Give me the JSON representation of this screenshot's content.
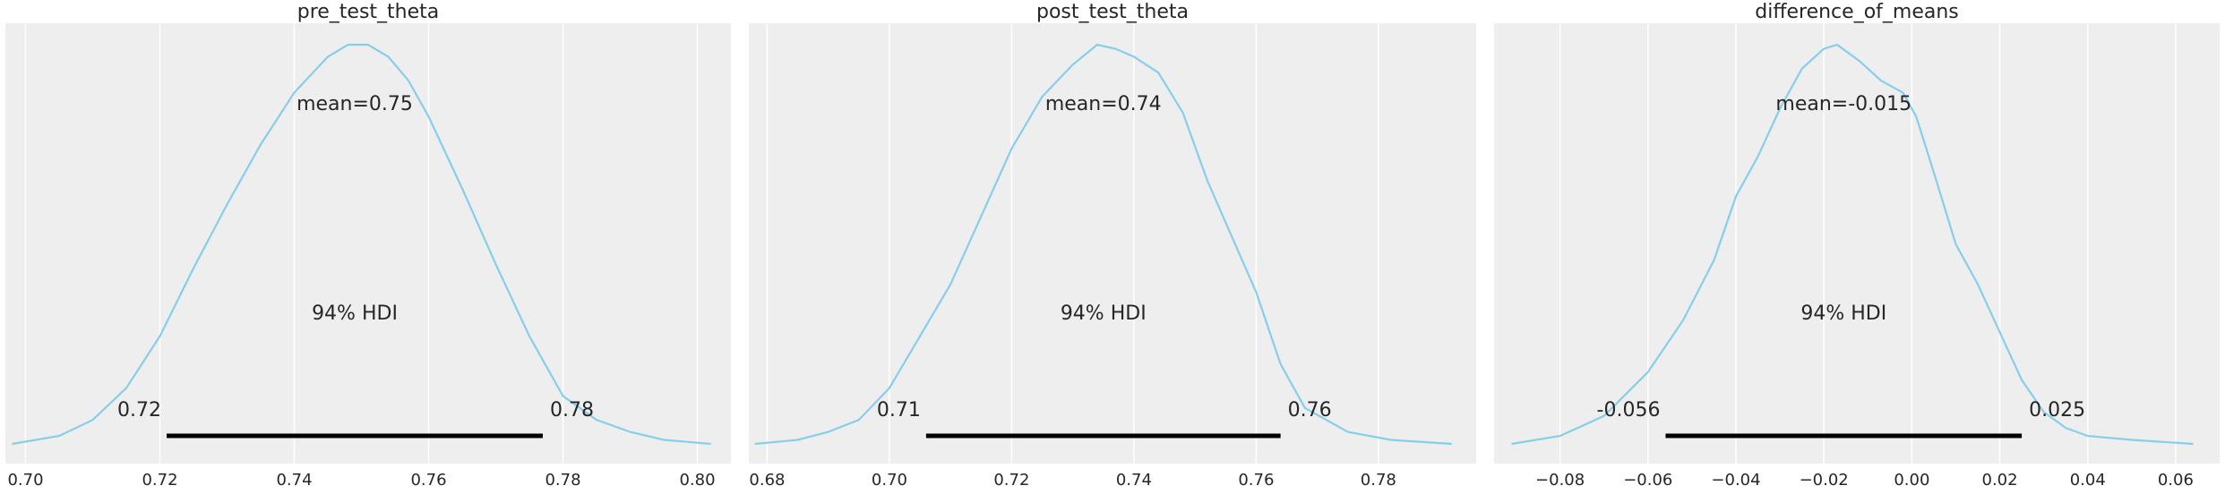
{
  "chart_data": [
    {
      "type": "line",
      "title": "pre_test_theta",
      "xlim": [
        0.697,
        0.805
      ],
      "xticks": [
        0.7,
        0.72,
        0.74,
        0.76,
        0.78,
        0.8
      ],
      "xtick_labels": [
        "0.70",
        "0.72",
        "0.74",
        "0.76",
        "0.78",
        "0.80"
      ],
      "density_x": [
        0.698,
        0.705,
        0.71,
        0.715,
        0.72,
        0.725,
        0.73,
        0.735,
        0.74,
        0.745,
        0.748,
        0.751,
        0.754,
        0.757,
        0.76,
        0.765,
        0.77,
        0.775,
        0.78,
        0.785,
        0.79,
        0.795,
        0.802
      ],
      "density_y": [
        0.0,
        0.02,
        0.06,
        0.14,
        0.27,
        0.44,
        0.6,
        0.75,
        0.88,
        0.97,
        1.0,
        1.0,
        0.97,
        0.91,
        0.82,
        0.64,
        0.45,
        0.27,
        0.12,
        0.06,
        0.03,
        0.01,
        0.0
      ],
      "mean_label": "mean=0.75",
      "hdi_label": "94% HDI",
      "hdi": [
        0.721,
        0.777
      ],
      "hdi_low_label": "0.72",
      "hdi_high_label": "0.78",
      "grid": true
    },
    {
      "type": "line",
      "title": "post_test_theta",
      "xlim": [
        0.677,
        0.796
      ],
      "xticks": [
        0.68,
        0.7,
        0.72,
        0.74,
        0.76,
        0.78
      ],
      "xtick_labels": [
        "0.68",
        "0.70",
        "0.72",
        "0.74",
        "0.76",
        "0.78"
      ],
      "density_x": [
        0.678,
        0.685,
        0.69,
        0.695,
        0.7,
        0.705,
        0.71,
        0.715,
        0.72,
        0.725,
        0.73,
        0.734,
        0.737,
        0.74,
        0.744,
        0.748,
        0.752,
        0.756,
        0.76,
        0.764,
        0.768,
        0.775,
        0.782,
        0.792
      ],
      "density_y": [
        0.0,
        0.01,
        0.03,
        0.06,
        0.14,
        0.27,
        0.4,
        0.57,
        0.74,
        0.87,
        0.95,
        1.0,
        0.99,
        0.97,
        0.93,
        0.83,
        0.66,
        0.52,
        0.38,
        0.2,
        0.09,
        0.03,
        0.01,
        0.0
      ],
      "mean_label": "mean=0.74",
      "hdi_label": "94% HDI",
      "hdi": [
        0.706,
        0.764
      ],
      "hdi_low_label": "0.71",
      "hdi_high_label": "0.76",
      "grid": true
    },
    {
      "type": "line",
      "title": "difference_of_means",
      "xlim": [
        -0.095,
        0.07
      ],
      "xticks": [
        -0.08,
        -0.06,
        -0.04,
        -0.02,
        0.0,
        0.02,
        0.04,
        0.06
      ],
      "xtick_labels": [
        "−0.08",
        "−0.06",
        "−0.04",
        "−0.02",
        "0.00",
        "0.02",
        "0.04",
        "0.06"
      ],
      "density_x": [
        -0.091,
        -0.08,
        -0.07,
        -0.06,
        -0.052,
        -0.045,
        -0.04,
        -0.035,
        -0.03,
        -0.025,
        -0.02,
        -0.017,
        -0.012,
        -0.007,
        -0.002,
        0.001,
        0.005,
        0.01,
        0.015,
        0.02,
        0.025,
        0.03,
        0.035,
        0.04,
        0.05,
        0.064
      ],
      "density_y": [
        0.0,
        0.02,
        0.07,
        0.18,
        0.31,
        0.46,
        0.62,
        0.72,
        0.84,
        0.94,
        0.99,
        1.0,
        0.96,
        0.91,
        0.88,
        0.82,
        0.68,
        0.5,
        0.4,
        0.28,
        0.16,
        0.08,
        0.04,
        0.02,
        0.01,
        0.0
      ],
      "mean_label": "mean=-0.015",
      "hdi_label": "94% HDI",
      "hdi": [
        -0.056,
        0.025
      ],
      "hdi_low_label": "-0.056",
      "hdi_high_label": "0.025",
      "grid": true
    }
  ],
  "style": {
    "panel_bg": "#eeeeee",
    "grid_color": "#ffffff",
    "line_color": "#87ceeb",
    "hdi_color": "#000000",
    "text_color": "#262626"
  }
}
